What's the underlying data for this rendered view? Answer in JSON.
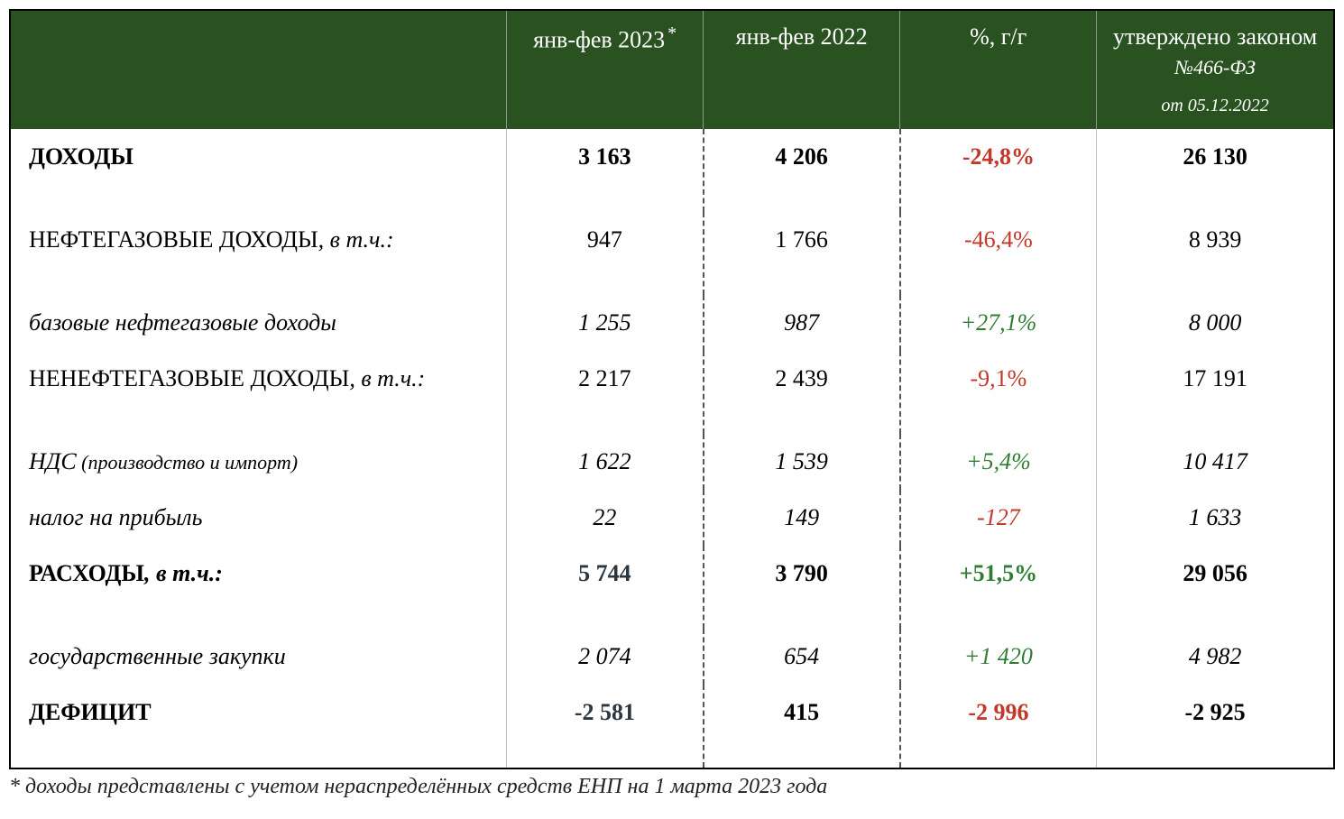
{
  "colors": {
    "header_bg": "#2a5221",
    "header_text": "#ffffff",
    "border": "#000000",
    "cell_divider_dashed": "#555555",
    "cell_divider_solid": "#bfbfbf",
    "positive": "#2e7d32",
    "negative": "#c0392b",
    "dark_num": "#2b3640"
  },
  "typography": {
    "base_font": "Georgia, Times New Roman, serif",
    "header_fontsize": 26,
    "cell_fontsize": 26,
    "subheader_fontsize": 22,
    "footnote_fontsize": 24
  },
  "header": {
    "col_label": "",
    "col_2023": "янв-фев 2023",
    "col_2023_asterisk": "*",
    "col_2022": "янв-фев 2022",
    "col_pct": "%, г/г",
    "col_law_line1": "утверждено законом",
    "col_law_line2": "№466-ФЗ",
    "col_law_line3": "от 05.12.2022"
  },
  "rows": [
    {
      "id": "income",
      "label": "ДОХОДЫ",
      "bold": true,
      "tall": true,
      "v2023": "3 163",
      "v2022": "4 206",
      "pct": "-24,8%",
      "pct_sign": "neg",
      "law": "26 130"
    },
    {
      "id": "oil_gas_income",
      "label": "НЕФТЕГАЗОВЫЕ ДОХОДЫ",
      "suffix": ", в т.ч.:",
      "suffix_italic": true,
      "indent": 1,
      "tall": true,
      "v2023": "947",
      "v2022": "1 766",
      "pct": "-46,4%",
      "pct_sign": "neg",
      "law": "8 939"
    },
    {
      "id": "base_oil_gas",
      "label": "базовые нефтегазовые доходы",
      "italic": true,
      "indent": 2,
      "v2023": "1 255",
      "v2023_italic": true,
      "v2022": "987",
      "v2022_italic": true,
      "pct": "+27,1%",
      "pct_italic": true,
      "pct_sign": "pos",
      "law": "8 000",
      "law_italic": true
    },
    {
      "id": "non_oil_gas_income",
      "label": "НЕНЕФТЕГАЗОВЫЕ ДОХОДЫ",
      "suffix": ", в т.ч.:",
      "suffix_italic": true,
      "indent": 1,
      "tall": true,
      "v2023": "2 217",
      "v2022": "2 439",
      "pct": "-9,1%",
      "pct_sign": "neg",
      "law": "17 191"
    },
    {
      "id": "vat",
      "label": "НДС",
      "label_note": " (производство и импорт)",
      "italic": true,
      "indent": 2,
      "v2023": "1 622",
      "v2023_italic": true,
      "v2022": "1 539",
      "v2022_italic": true,
      "pct": "+5,4%",
      "pct_italic": true,
      "pct_sign": "pos",
      "law": "10 417",
      "law_italic": true
    },
    {
      "id": "profit_tax",
      "label": "налог на прибыль",
      "italic": true,
      "indent": 2,
      "v2023": "22",
      "v2023_italic": true,
      "v2022": "149",
      "v2022_italic": true,
      "pct": "-127",
      "pct_italic": true,
      "pct_sign": "neg",
      "law": "1 633",
      "law_italic": true
    },
    {
      "id": "expenses",
      "label": "РАСХОДЫ",
      "suffix": ", в т.ч.:",
      "suffix_italic": true,
      "bold": true,
      "tall": true,
      "v2023": "5 744",
      "v2023_dark": true,
      "v2022": "3 790",
      "pct": "+51,5%",
      "pct_sign": "pos",
      "law": "29 056"
    },
    {
      "id": "gov_procurement",
      "label": "государственные закупки",
      "italic": true,
      "indent": 2,
      "v2023": "2 074",
      "v2023_italic": true,
      "v2022": "654",
      "v2022_italic": true,
      "pct": "+1 420",
      "pct_italic": true,
      "pct_sign": "pos",
      "law": "4 982",
      "law_italic": true
    },
    {
      "id": "deficit",
      "label": "ДЕФИЦИТ",
      "bold": true,
      "tall": true,
      "v2023": "-2 581",
      "v2023_dark": true,
      "v2022": "415",
      "pct": "-2 996",
      "pct_sign": "neg",
      "law": "-2 925"
    }
  ],
  "footnote": "* доходы представлены с учетом нераспределённых средств ЕНП на 1 марта 2023 года"
}
